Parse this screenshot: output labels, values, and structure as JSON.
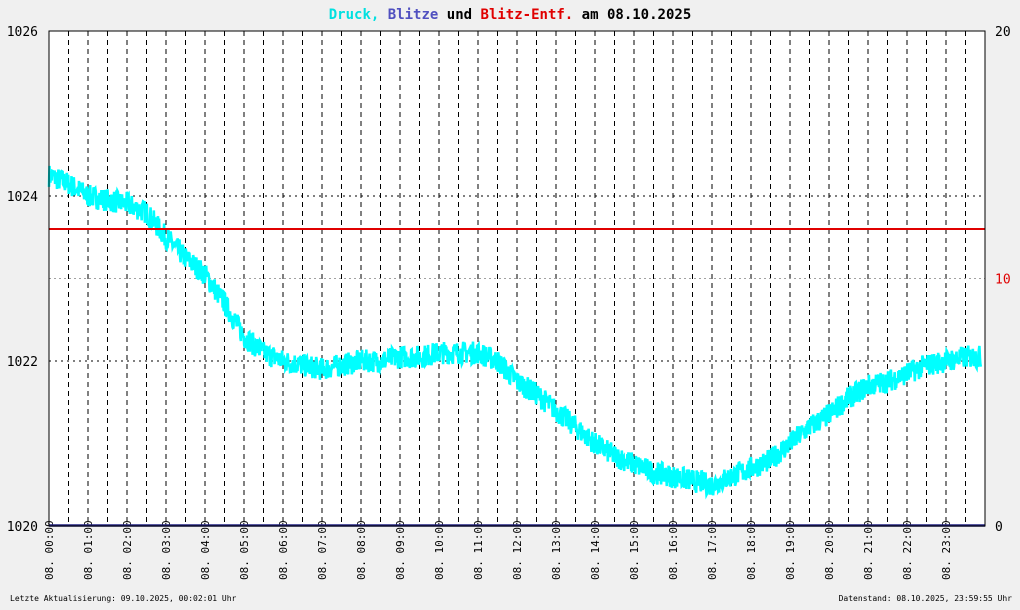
{
  "title": {
    "part1": "Druck,",
    "part2": "Blitze",
    "part3": "und",
    "part4": "Blitz-Entf.",
    "part5": "am 08.10.2025"
  },
  "footer": {
    "left": "Letzte Aktualisierung: 09.10.2025, 00:02:01 Uhr",
    "right": "Datenstand: 08.10.2025, 23:59:55 Uhr"
  },
  "colors": {
    "pressure": "#00ffff",
    "lightning": "#5050c0",
    "distance": "#e00000",
    "baseline": "#202080",
    "text": "#000000"
  },
  "chart_data": {
    "type": "line",
    "date_label": "08.",
    "x_ticks": [
      "00:00",
      "01:00",
      "02:00",
      "03:00",
      "04:00",
      "05:00",
      "06:00",
      "07:00",
      "08:00",
      "09:00",
      "10:00",
      "11:00",
      "12:00",
      "13:00",
      "14:00",
      "15:00",
      "16:00",
      "17:00",
      "18:00",
      "19:00",
      "20:00",
      "21:00",
      "22:00",
      "23:00"
    ],
    "y_left": {
      "ticks": [
        1020,
        1022,
        1024,
        1026
      ],
      "lim": [
        1020,
        1026
      ]
    },
    "y_right": {
      "ticks": [
        0,
        10,
        20
      ],
      "lim": [
        0,
        20
      ]
    },
    "series": [
      {
        "name": "Druck",
        "axis": "left",
        "x_hours": [
          0,
          0.5,
          1,
          1.5,
          2,
          2.5,
          3,
          3.5,
          4,
          4.5,
          5,
          5.5,
          6,
          6.5,
          7,
          7.5,
          8,
          8.5,
          9,
          9.5,
          10,
          10.5,
          11,
          11.5,
          12,
          12.5,
          13,
          13.5,
          14,
          14.5,
          15,
          15.5,
          16,
          16.5,
          17,
          17.5,
          18,
          18.5,
          19,
          19.5,
          20,
          20.5,
          21,
          21.5,
          22,
          22.5,
          23,
          23.5,
          23.9
        ],
        "values": [
          1024.25,
          1024.15,
          1024.0,
          1023.95,
          1023.9,
          1023.8,
          1023.5,
          1023.25,
          1023.05,
          1022.7,
          1022.3,
          1022.1,
          1022.0,
          1021.95,
          1021.9,
          1021.95,
          1022.0,
          1022.0,
          1022.05,
          1022.05,
          1022.1,
          1022.1,
          1022.1,
          1022.0,
          1021.75,
          1021.6,
          1021.4,
          1021.2,
          1021.0,
          1020.85,
          1020.75,
          1020.65,
          1020.6,
          1020.55,
          1020.5,
          1020.6,
          1020.7,
          1020.8,
          1021.0,
          1021.2,
          1021.35,
          1021.55,
          1021.7,
          1021.75,
          1021.85,
          1021.95,
          1022.0,
          1022.05,
          1022.05
        ]
      },
      {
        "name": "Blitz-Entf.",
        "axis": "right",
        "x_hours": [
          0,
          23.9
        ],
        "values": [
          12,
          12
        ]
      },
      {
        "name": "Blitze",
        "axis": "right",
        "x_hours": [
          0,
          23.9
        ],
        "values": [
          0,
          0
        ]
      }
    ]
  }
}
